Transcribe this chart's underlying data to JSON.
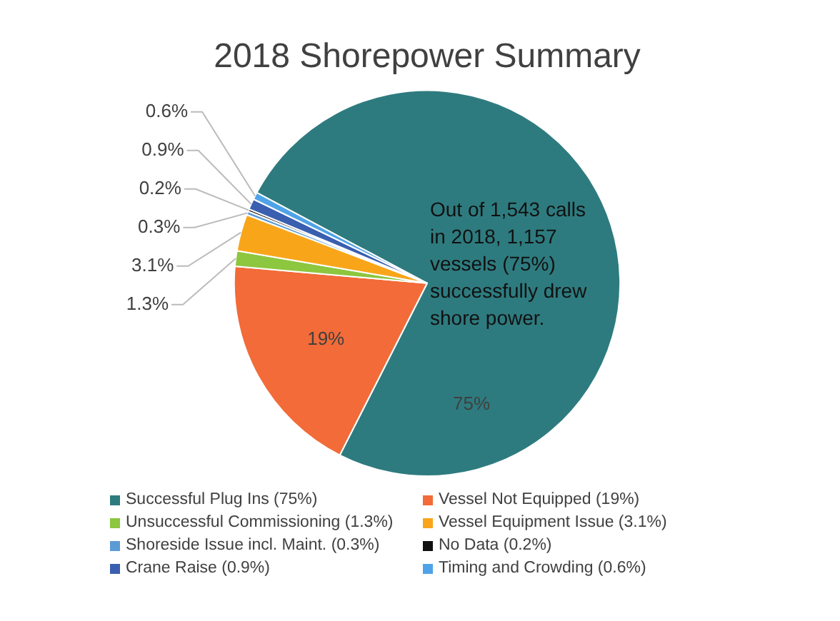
{
  "chart_data": {
    "type": "pie",
    "title": "2018 Shorepower Summary",
    "categories": [
      "Successful Plug Ins (75%)",
      "Vessel Not Equipped (19%)",
      "Unsuccessful Commissioning (1.3%)",
      "Vessel Equipment Issue (3.1%)",
      "Shoreside Issue incl. Maint. (0.3%)",
      "No Data (0.2%)",
      "Crane Raise (0.9%)",
      "Timing and Crowding (0.6%)"
    ],
    "values": [
      75,
      19,
      1.3,
      3.1,
      0.3,
      0.2,
      0.9,
      0.6
    ],
    "colors": [
      "#2e7b7f",
      "#f26b38",
      "#8dc63f",
      "#f9a51a",
      "#5b9bd5",
      "#111111",
      "#3a5fb0",
      "#4fa3e8"
    ],
    "value_labels": [
      "75%",
      "19%",
      "1.3%",
      "3.1%",
      "0.3%",
      "0.2%",
      "0.9%",
      "0.6%"
    ],
    "annotations": [
      "Out of 1,543 calls in 2018, 1,157 vessels (75%) successfully drew shore power."
    ],
    "legend": "bottom"
  }
}
